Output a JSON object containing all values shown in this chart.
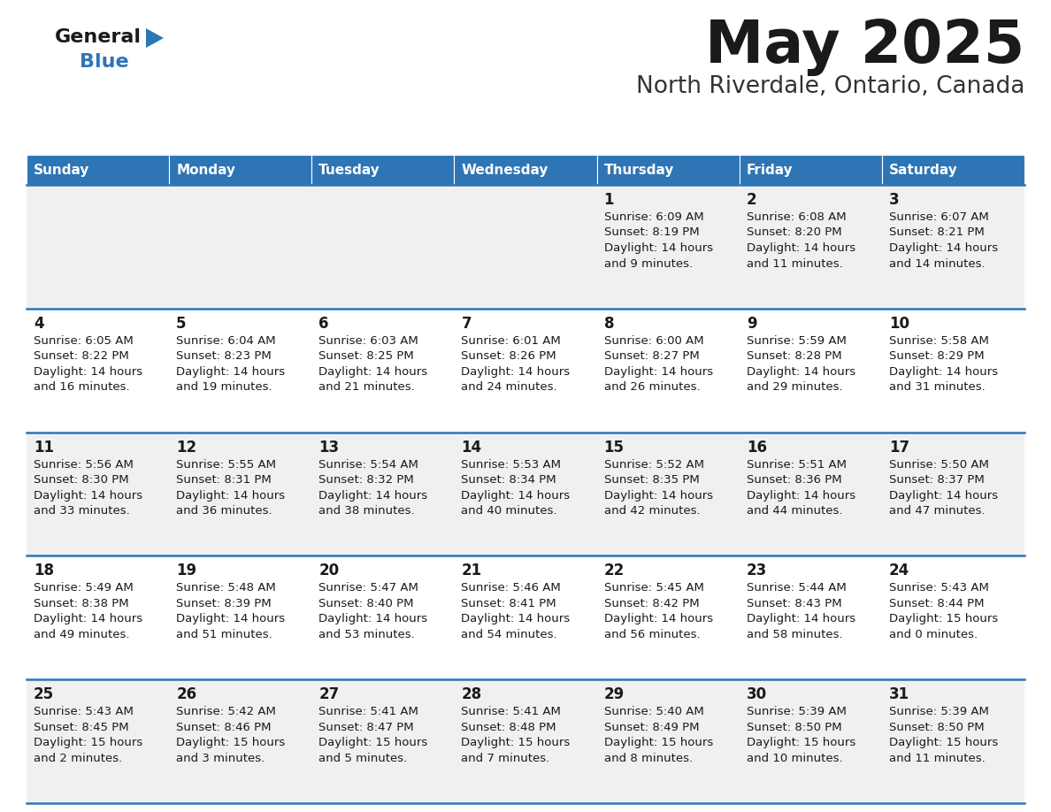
{
  "title": "May 2025",
  "subtitle": "North Riverdale, Ontario, Canada",
  "header_bg": "#2E75B6",
  "header_text_color": "#FFFFFF",
  "cell_bg_odd": "#F0F0F0",
  "cell_bg_even": "#FFFFFF",
  "border_color": "#2E75B6",
  "day_headers": [
    "Sunday",
    "Monday",
    "Tuesday",
    "Wednesday",
    "Thursday",
    "Friday",
    "Saturday"
  ],
  "days": [
    {
      "day": 1,
      "col": 4,
      "row": 0,
      "sunrise": "6:09 AM",
      "sunset": "8:19 PM",
      "daylight": "14 hours and 9 minutes."
    },
    {
      "day": 2,
      "col": 5,
      "row": 0,
      "sunrise": "6:08 AM",
      "sunset": "8:20 PM",
      "daylight": "14 hours and 11 minutes."
    },
    {
      "day": 3,
      "col": 6,
      "row": 0,
      "sunrise": "6:07 AM",
      "sunset": "8:21 PM",
      "daylight": "14 hours and 14 minutes."
    },
    {
      "day": 4,
      "col": 0,
      "row": 1,
      "sunrise": "6:05 AM",
      "sunset": "8:22 PM",
      "daylight": "14 hours and 16 minutes."
    },
    {
      "day": 5,
      "col": 1,
      "row": 1,
      "sunrise": "6:04 AM",
      "sunset": "8:23 PM",
      "daylight": "14 hours and 19 minutes."
    },
    {
      "day": 6,
      "col": 2,
      "row": 1,
      "sunrise": "6:03 AM",
      "sunset": "8:25 PM",
      "daylight": "14 hours and 21 minutes."
    },
    {
      "day": 7,
      "col": 3,
      "row": 1,
      "sunrise": "6:01 AM",
      "sunset": "8:26 PM",
      "daylight": "14 hours and 24 minutes."
    },
    {
      "day": 8,
      "col": 4,
      "row": 1,
      "sunrise": "6:00 AM",
      "sunset": "8:27 PM",
      "daylight": "14 hours and 26 minutes."
    },
    {
      "day": 9,
      "col": 5,
      "row": 1,
      "sunrise": "5:59 AM",
      "sunset": "8:28 PM",
      "daylight": "14 hours and 29 minutes."
    },
    {
      "day": 10,
      "col": 6,
      "row": 1,
      "sunrise": "5:58 AM",
      "sunset": "8:29 PM",
      "daylight": "14 hours and 31 minutes."
    },
    {
      "day": 11,
      "col": 0,
      "row": 2,
      "sunrise": "5:56 AM",
      "sunset": "8:30 PM",
      "daylight": "14 hours and 33 minutes."
    },
    {
      "day": 12,
      "col": 1,
      "row": 2,
      "sunrise": "5:55 AM",
      "sunset": "8:31 PM",
      "daylight": "14 hours and 36 minutes."
    },
    {
      "day": 13,
      "col": 2,
      "row": 2,
      "sunrise": "5:54 AM",
      "sunset": "8:32 PM",
      "daylight": "14 hours and 38 minutes."
    },
    {
      "day": 14,
      "col": 3,
      "row": 2,
      "sunrise": "5:53 AM",
      "sunset": "8:34 PM",
      "daylight": "14 hours and 40 minutes."
    },
    {
      "day": 15,
      "col": 4,
      "row": 2,
      "sunrise": "5:52 AM",
      "sunset": "8:35 PM",
      "daylight": "14 hours and 42 minutes."
    },
    {
      "day": 16,
      "col": 5,
      "row": 2,
      "sunrise": "5:51 AM",
      "sunset": "8:36 PM",
      "daylight": "14 hours and 44 minutes."
    },
    {
      "day": 17,
      "col": 6,
      "row": 2,
      "sunrise": "5:50 AM",
      "sunset": "8:37 PM",
      "daylight": "14 hours and 47 minutes."
    },
    {
      "day": 18,
      "col": 0,
      "row": 3,
      "sunrise": "5:49 AM",
      "sunset": "8:38 PM",
      "daylight": "14 hours and 49 minutes."
    },
    {
      "day": 19,
      "col": 1,
      "row": 3,
      "sunrise": "5:48 AM",
      "sunset": "8:39 PM",
      "daylight": "14 hours and 51 minutes."
    },
    {
      "day": 20,
      "col": 2,
      "row": 3,
      "sunrise": "5:47 AM",
      "sunset": "8:40 PM",
      "daylight": "14 hours and 53 minutes."
    },
    {
      "day": 21,
      "col": 3,
      "row": 3,
      "sunrise": "5:46 AM",
      "sunset": "8:41 PM",
      "daylight": "14 hours and 54 minutes."
    },
    {
      "day": 22,
      "col": 4,
      "row": 3,
      "sunrise": "5:45 AM",
      "sunset": "8:42 PM",
      "daylight": "14 hours and 56 minutes."
    },
    {
      "day": 23,
      "col": 5,
      "row": 3,
      "sunrise": "5:44 AM",
      "sunset": "8:43 PM",
      "daylight": "14 hours and 58 minutes."
    },
    {
      "day": 24,
      "col": 6,
      "row": 3,
      "sunrise": "5:43 AM",
      "sunset": "8:44 PM",
      "daylight": "15 hours and 0 minutes."
    },
    {
      "day": 25,
      "col": 0,
      "row": 4,
      "sunrise": "5:43 AM",
      "sunset": "8:45 PM",
      "daylight": "15 hours and 2 minutes."
    },
    {
      "day": 26,
      "col": 1,
      "row": 4,
      "sunrise": "5:42 AM",
      "sunset": "8:46 PM",
      "daylight": "15 hours and 3 minutes."
    },
    {
      "day": 27,
      "col": 2,
      "row": 4,
      "sunrise": "5:41 AM",
      "sunset": "8:47 PM",
      "daylight": "15 hours and 5 minutes."
    },
    {
      "day": 28,
      "col": 3,
      "row": 4,
      "sunrise": "5:41 AM",
      "sunset": "8:48 PM",
      "daylight": "15 hours and 7 minutes."
    },
    {
      "day": 29,
      "col": 4,
      "row": 4,
      "sunrise": "5:40 AM",
      "sunset": "8:49 PM",
      "daylight": "15 hours and 8 minutes."
    },
    {
      "day": 30,
      "col": 5,
      "row": 4,
      "sunrise": "5:39 AM",
      "sunset": "8:50 PM",
      "daylight": "15 hours and 10 minutes."
    },
    {
      "day": 31,
      "col": 6,
      "row": 4,
      "sunrise": "5:39 AM",
      "sunset": "8:50 PM",
      "daylight": "15 hours and 11 minutes."
    }
  ]
}
